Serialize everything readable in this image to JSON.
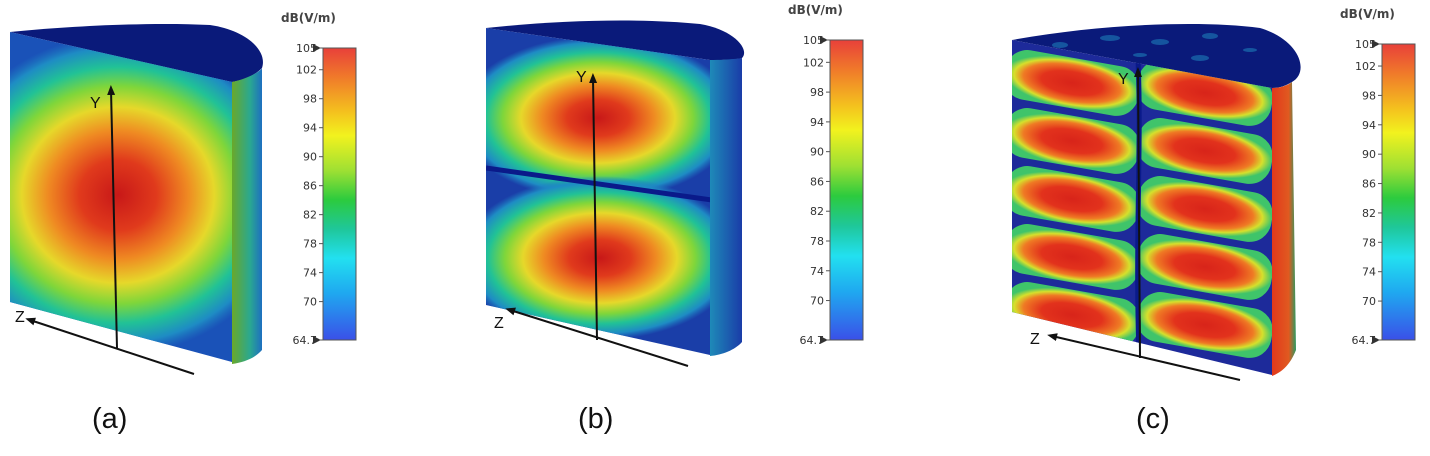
{
  "colorbar": {
    "unit": "dB(V/m)",
    "max": 105,
    "min": 64.7,
    "ticks": [
      "105",
      "102",
      "98",
      "94",
      "90",
      "86",
      "82",
      "78",
      "74",
      "70",
      "64.7"
    ],
    "colors": [
      "#e8403a",
      "#f07a2a",
      "#f4c21e",
      "#f2f21e",
      "#9ee033",
      "#2ccb3e",
      "#1fc79a",
      "#1ed0cf",
      "#22e0f0",
      "#1fa8f0",
      "#3a56e8"
    ]
  },
  "axes": {
    "y_label": "Y",
    "z_label": "Z"
  },
  "panels": [
    {
      "caption": "(a)",
      "mode": "single-lobe"
    },
    {
      "caption": "(b)",
      "mode": "two-lobe"
    },
    {
      "caption": "(c)",
      "mode": "ten-lobe"
    }
  ]
}
